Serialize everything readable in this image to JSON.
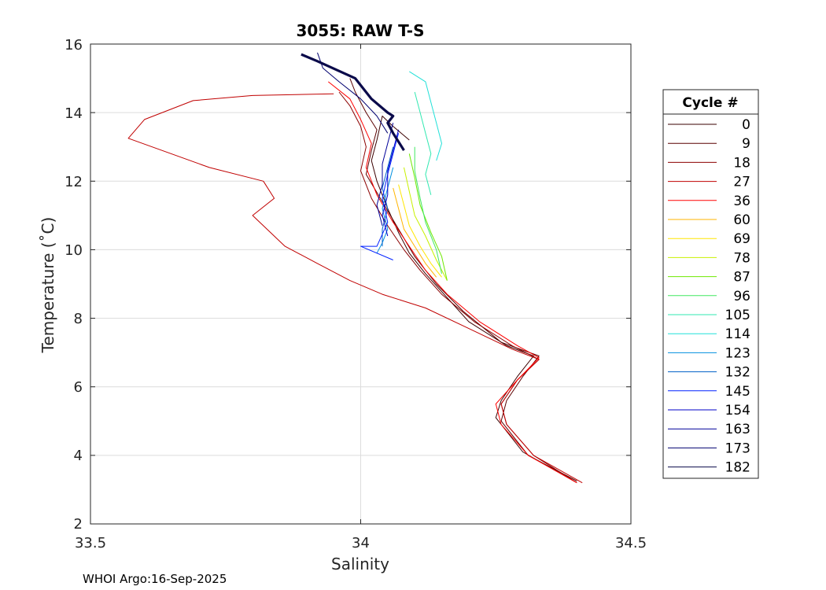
{
  "chart_data": {
    "type": "line",
    "title": "3055: RAW T-S",
    "xlabel": "Salinity",
    "ylabel": "Temperature (˚C)",
    "xlim": [
      33.5,
      34.5
    ],
    "ylim": [
      2,
      16
    ],
    "xticks": [
      "33.5",
      "34",
      "34.5"
    ],
    "yticks": [
      "2",
      "4",
      "6",
      "8",
      "10",
      "12",
      "14",
      "16"
    ],
    "grid": true,
    "legend_title": "Cycle #",
    "legend_position": "outside-right",
    "footer": "WHOI Argo:16-Sep-2025",
    "series": [
      {
        "name": "0",
        "color": "#3a0000",
        "points": [
          [
            34.09,
            13.2
          ],
          [
            34.06,
            13.6
          ],
          [
            34.04,
            13.9
          ],
          [
            34.03,
            13.2
          ],
          [
            34.02,
            12.6
          ],
          [
            34.03,
            12.0
          ],
          [
            34.05,
            11.2
          ],
          [
            34.07,
            10.5
          ],
          [
            34.09,
            9.9
          ],
          [
            34.12,
            9.3
          ],
          [
            34.16,
            8.6
          ],
          [
            34.2,
            7.9
          ],
          [
            34.27,
            7.2
          ],
          [
            34.32,
            6.9
          ],
          [
            34.29,
            6.3
          ],
          [
            34.26,
            5.6
          ],
          [
            34.25,
            5.1
          ],
          [
            34.3,
            4.1
          ],
          [
            34.4,
            3.2
          ]
        ]
      },
      {
        "name": "9",
        "color": "#5a0000",
        "points": [
          [
            33.98,
            15.0
          ],
          [
            33.99,
            14.6
          ],
          [
            34.01,
            14.0
          ],
          [
            34.03,
            13.5
          ],
          [
            34.02,
            12.9
          ],
          [
            34.01,
            12.2
          ],
          [
            34.04,
            11.4
          ],
          [
            34.07,
            10.6
          ],
          [
            34.1,
            9.8
          ],
          [
            34.14,
            9.0
          ],
          [
            34.19,
            8.2
          ],
          [
            34.26,
            7.3
          ],
          [
            34.33,
            6.9
          ],
          [
            34.3,
            6.3
          ],
          [
            34.27,
            5.6
          ],
          [
            34.26,
            5.0
          ],
          [
            34.31,
            4.0
          ],
          [
            34.4,
            3.25
          ]
        ]
      },
      {
        "name": "18",
        "color": "#8b0000",
        "points": [
          [
            33.96,
            14.6
          ],
          [
            33.98,
            14.2
          ],
          [
            34.0,
            13.6
          ],
          [
            34.01,
            13.0
          ],
          [
            34.0,
            12.3
          ],
          [
            34.02,
            11.5
          ],
          [
            34.05,
            10.7
          ],
          [
            34.08,
            10.0
          ],
          [
            34.11,
            9.4
          ],
          [
            34.15,
            8.7
          ],
          [
            34.21,
            7.9
          ],
          [
            34.28,
            7.2
          ],
          [
            34.33,
            6.8
          ],
          [
            34.29,
            6.2
          ],
          [
            34.26,
            5.5
          ],
          [
            34.27,
            4.9
          ],
          [
            34.32,
            4.0
          ],
          [
            34.4,
            3.2
          ]
        ]
      },
      {
        "name": "27",
        "color": "#c00000",
        "points": [
          [
            33.95,
            14.55
          ],
          [
            33.8,
            14.5
          ],
          [
            33.69,
            14.35
          ],
          [
            33.6,
            13.8
          ],
          [
            33.57,
            13.25
          ],
          [
            33.72,
            12.4
          ],
          [
            33.82,
            12.0
          ],
          [
            33.84,
            11.5
          ],
          [
            33.8,
            11.0
          ],
          [
            33.86,
            10.1
          ],
          [
            33.92,
            9.6
          ],
          [
            33.98,
            9.1
          ],
          [
            34.04,
            8.7
          ],
          [
            34.12,
            8.3
          ],
          [
            34.2,
            7.7
          ],
          [
            34.28,
            7.1
          ],
          [
            34.33,
            6.8
          ],
          [
            34.29,
            6.2
          ],
          [
            34.26,
            5.5
          ],
          [
            34.27,
            4.9
          ],
          [
            34.32,
            4.0
          ],
          [
            34.41,
            3.2
          ]
        ]
      },
      {
        "name": "36",
        "color": "#ff0000",
        "points": [
          [
            33.94,
            14.9
          ],
          [
            33.98,
            14.4
          ],
          [
            34.0,
            13.8
          ],
          [
            34.02,
            13.1
          ],
          [
            34.01,
            12.4
          ],
          [
            34.03,
            11.6
          ],
          [
            34.06,
            10.8
          ],
          [
            34.09,
            10.1
          ],
          [
            34.12,
            9.4
          ],
          [
            34.16,
            8.7
          ],
          [
            34.22,
            7.9
          ],
          [
            34.29,
            7.2
          ],
          [
            34.33,
            6.85
          ],
          [
            34.29,
            6.2
          ],
          [
            34.25,
            5.5
          ],
          [
            34.26,
            4.9
          ],
          [
            34.31,
            4.0
          ],
          [
            34.4,
            3.2
          ]
        ]
      },
      {
        "name": "60",
        "color": "#ffb400",
        "points": [
          [
            34.06,
            11.8
          ],
          [
            34.07,
            11.2
          ],
          [
            34.08,
            10.6
          ],
          [
            34.1,
            10.1
          ],
          [
            34.12,
            9.6
          ],
          [
            34.14,
            9.2
          ]
        ]
      },
      {
        "name": "69",
        "color": "#ffe600",
        "points": [
          [
            34.07,
            11.9
          ],
          [
            34.08,
            11.3
          ],
          [
            34.09,
            10.7
          ],
          [
            34.11,
            10.1
          ],
          [
            34.13,
            9.6
          ],
          [
            34.15,
            9.2
          ]
        ]
      },
      {
        "name": "78",
        "color": "#c8f000",
        "points": [
          [
            34.08,
            12.4
          ],
          [
            34.09,
            11.7
          ],
          [
            34.1,
            11.0
          ],
          [
            34.12,
            10.4
          ],
          [
            34.14,
            9.7
          ],
          [
            34.16,
            9.1
          ]
        ]
      },
      {
        "name": "87",
        "color": "#6ee800",
        "points": [
          [
            34.09,
            12.8
          ],
          [
            34.1,
            12.1
          ],
          [
            34.11,
            11.3
          ],
          [
            34.13,
            10.5
          ],
          [
            34.15,
            9.8
          ],
          [
            34.16,
            9.1
          ]
        ]
      },
      {
        "name": "96",
        "color": "#40e860",
        "points": [
          [
            34.1,
            13.0
          ],
          [
            34.1,
            12.3
          ],
          [
            34.11,
            11.5
          ],
          [
            34.12,
            10.8
          ],
          [
            34.14,
            10.0
          ],
          [
            34.15,
            9.3
          ]
        ]
      },
      {
        "name": "105",
        "color": "#30e8b0",
        "points": [
          [
            34.1,
            14.6
          ],
          [
            34.11,
            14.0
          ],
          [
            34.12,
            13.4
          ],
          [
            34.13,
            12.8
          ],
          [
            34.12,
            12.2
          ],
          [
            34.13,
            11.6
          ]
        ]
      },
      {
        "name": "114",
        "color": "#20e0d8",
        "points": [
          [
            34.09,
            15.2
          ],
          [
            34.12,
            14.9
          ],
          [
            34.13,
            14.3
          ],
          [
            34.14,
            13.7
          ],
          [
            34.15,
            13.1
          ],
          [
            34.14,
            12.6
          ]
        ]
      },
      {
        "name": "123",
        "color": "#0090e0",
        "points": [
          [
            34.06,
            12.4
          ],
          [
            34.05,
            11.8
          ],
          [
            34.04,
            11.2
          ],
          [
            34.05,
            10.6
          ],
          [
            34.04,
            10.2
          ],
          [
            34.03,
            9.9
          ]
        ]
      },
      {
        "name": "132",
        "color": "#0060c8",
        "points": [
          [
            34.06,
            13.0
          ],
          [
            34.05,
            12.4
          ],
          [
            34.04,
            11.8
          ],
          [
            34.05,
            11.2
          ],
          [
            34.04,
            10.6
          ],
          [
            34.04,
            10.1
          ]
        ]
      },
      {
        "name": "145",
        "color": "#0020ff",
        "points": [
          [
            34.07,
            13.4
          ],
          [
            34.06,
            12.8
          ],
          [
            34.05,
            12.2
          ],
          [
            34.04,
            11.5
          ],
          [
            34.05,
            10.8
          ],
          [
            34.03,
            10.1
          ],
          [
            34.0,
            10.1
          ],
          [
            34.06,
            9.7
          ]
        ]
      },
      {
        "name": "154",
        "color": "#0000c8",
        "points": [
          [
            34.07,
            13.5
          ],
          [
            34.06,
            12.9
          ],
          [
            34.05,
            12.3
          ],
          [
            34.05,
            11.6
          ],
          [
            34.04,
            11.0
          ],
          [
            34.05,
            10.4
          ]
        ]
      },
      {
        "name": "163",
        "color": "#00009a",
        "points": [
          [
            34.06,
            13.7
          ],
          [
            34.05,
            13.1
          ],
          [
            34.04,
            12.5
          ],
          [
            34.04,
            11.9
          ],
          [
            34.03,
            11.3
          ],
          [
            34.04,
            10.7
          ]
        ]
      },
      {
        "name": "173",
        "color": "#000070",
        "points": [
          [
            33.92,
            15.75
          ],
          [
            33.93,
            15.3
          ],
          [
            33.96,
            14.9
          ],
          [
            34.0,
            14.4
          ],
          [
            34.03,
            13.9
          ],
          [
            34.05,
            13.4
          ]
        ]
      },
      {
        "name": "182",
        "color": "#0a0a4a",
        "points": [
          [
            33.89,
            15.7
          ],
          [
            33.92,
            15.5
          ],
          [
            33.99,
            15.0
          ],
          [
            34.02,
            14.4
          ],
          [
            34.05,
            14.0
          ],
          [
            34.06,
            13.9
          ],
          [
            34.05,
            13.7
          ],
          [
            34.06,
            13.4
          ],
          [
            34.08,
            12.9
          ]
        ]
      }
    ]
  }
}
